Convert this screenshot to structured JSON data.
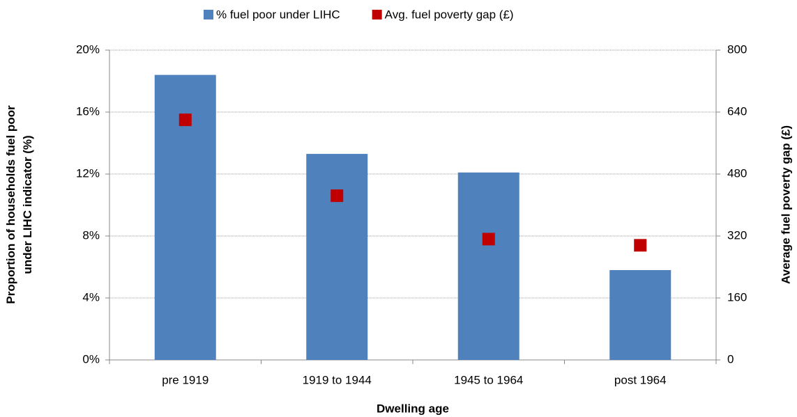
{
  "chart_data": {
    "type": "bar_scatter",
    "x_label": "Dwelling age",
    "y_label": "Proportion of households fuel poor under LIHC indicator (%)",
    "y2_label": "Average fuel poverty gap (£)",
    "categories": [
      "pre 1919",
      "1919 to 1944",
      "1945 to 1964",
      "post 1964"
    ],
    "series": [
      {
        "name": "% fuel poor under LIHC",
        "color": "#4f81bd",
        "values": [
          18.4,
          13.3,
          12.1,
          5.8
        ]
      },
      {
        "name": "Avg. fuel poverty gap (£)",
        "color": "#c00000",
        "axis": "y2",
        "values": [
          620,
          424,
          312,
          296
        ]
      }
    ],
    "ylim": [
      0,
      20
    ],
    "yticks": [
      {
        "value": 0,
        "label": "0%"
      },
      {
        "value": 4,
        "label": "4%"
      },
      {
        "value": 8,
        "label": "8%"
      },
      {
        "value": 12,
        "label": "12%"
      },
      {
        "value": 16,
        "label": "16%"
      },
      {
        "value": 20,
        "label": "20%"
      }
    ],
    "y2lim": [
      0,
      800
    ],
    "y2ticks": [
      0,
      160,
      320,
      480,
      640,
      800
    ],
    "grid": true,
    "legend": "top"
  }
}
